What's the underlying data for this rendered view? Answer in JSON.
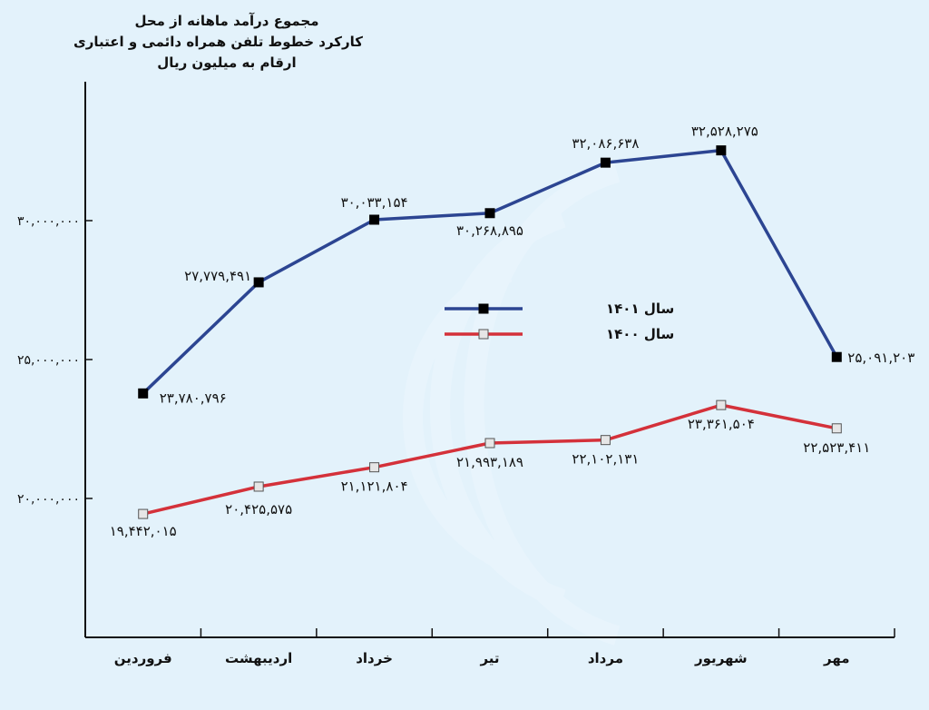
{
  "chart_data": {
    "type": "line",
    "title_lines": [
      "مجموع درآمد ماهانه از محل",
      "کارکرد خطوط تلفن همراه دائمی و اعتباری",
      "ارقام به میلیون ریال"
    ],
    "categories": [
      "فروردین",
      "اردیبهشت",
      "خرداد",
      "تیر",
      "مرداد",
      "شهریور",
      "مهر"
    ],
    "y_ticks": [
      20000000,
      25000000,
      30000000
    ],
    "y_tick_labels": [
      "۲۰,۰۰۰,۰۰۰",
      "۲۵,۰۰۰,۰۰۰",
      "۳۰,۰۰۰,۰۰۰"
    ],
    "ylim": [
      15000000,
      35000000
    ],
    "grid": false,
    "legend_position": "center",
    "series": [
      {
        "name": "سال ۱۴۰۱",
        "color": "#2c4592",
        "marker": "filled-square",
        "values": [
          23780796,
          27779491,
          30033154,
          30268895,
          32086638,
          32528275,
          25091203
        ],
        "labels": [
          "۲۳,۷۸۰,۷۹۶",
          "۲۷,۷۷۹,۴۹۱",
          "۳۰,۰۳۳,۱۵۴",
          "۳۰,۲۶۸,۸۹۵",
          "۳۲,۰۸۶,۶۳۸",
          "۳۲,۵۲۸,۲۷۵",
          "۲۵,۰۹۱,۲۰۳"
        ]
      },
      {
        "name": "سال ۱۴۰۰",
        "color": "#d4313a",
        "marker": "open-square",
        "values": [
          19442015,
          20425575,
          21121804,
          21993189,
          22102131,
          23361504,
          22523411
        ],
        "labels": [
          "۱۹,۴۴۲,۰۱۵",
          "۲۰,۴۲۵,۵۷۵",
          "۲۱,۱۲۱,۸۰۴",
          "۲۱,۹۹۳,۱۸۹",
          "۲۲,۱۰۲,۱۳۱",
          "۲۳,۳۶۱,۵۰۴",
          "۲۲,۵۲۳,۴۱۱"
        ]
      }
    ]
  }
}
